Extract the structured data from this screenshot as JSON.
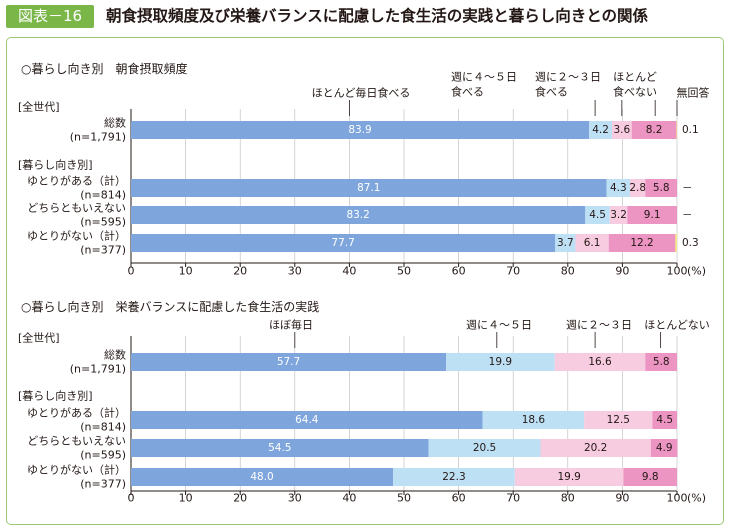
{
  "figure": {
    "number_label": "図表－16",
    "title": "朝食摂取頻度及び栄養バランスに配慮した食生活の実践と暮らし向きとの関係"
  },
  "colors": {
    "badge": "#7ab648",
    "panel_border": "#9cc878",
    "blue": "#7ea6dc",
    "light_blue": "#bee0f4",
    "light_pink": "#f7cbe0",
    "pink": "#ec95c3",
    "yellow": "#f5e880"
  },
  "chart_data": [
    {
      "type": "bar",
      "orientation": "horizontal",
      "stacked": true,
      "title": "○暮らし向き別　朝食摂取頻度",
      "xlim": [
        0,
        100
      ],
      "x_ticks": [
        "0",
        "10",
        "20",
        "30",
        "40",
        "50",
        "60",
        "70",
        "80",
        "90",
        "100"
      ],
      "x_unit": "(%)",
      "grid": true,
      "series": [
        {
          "name": "ほとんど毎日食べる",
          "color": "#7ea6dc"
        },
        {
          "name": "週に４～５日\n食べる",
          "color": "#bee0f4"
        },
        {
          "name": "週に２～３日\n食べる",
          "color": "#f7cbe0"
        },
        {
          "name": "ほとんど\n食べない",
          "color": "#ec95c3"
        },
        {
          "name": "無回答",
          "color": "#f5e880"
        }
      ],
      "groups": [
        {
          "label": "[全世代]",
          "rows": [
            {
              "label": "総数",
              "n": "(n=1,791)",
              "values": [
                83.9,
                4.2,
                3.6,
                8.2,
                0.1
              ],
              "labels": [
                "83.9",
                "4.2",
                "3.6",
                "8.2",
                "0.1"
              ]
            }
          ]
        },
        {
          "label": "[暮らし向き別]",
          "rows": [
            {
              "label": "ゆとりがある（計）",
              "n": "(n=814)",
              "values": [
                87.1,
                4.3,
                2.8,
                5.8,
                0
              ],
              "labels": [
                "87.1",
                "4.3",
                "2.8",
                "5.8",
                "－"
              ]
            },
            {
              "label": "どちらともいえない",
              "n": "(n=595)",
              "values": [
                83.2,
                4.5,
                3.2,
                9.1,
                0
              ],
              "labels": [
                "83.2",
                "4.5",
                "3.2",
                "9.1",
                "－"
              ]
            },
            {
              "label": "ゆとりがない（計）",
              "n": "(n=377)",
              "values": [
                77.7,
                3.7,
                6.1,
                12.2,
                0.3
              ],
              "labels": [
                "77.7",
                "3.7",
                "6.1",
                "12.2",
                "0.3"
              ]
            }
          ]
        }
      ]
    },
    {
      "type": "bar",
      "orientation": "horizontal",
      "stacked": true,
      "title": "○暮らし向き別　栄養バランスに配慮した食生活の実践",
      "xlim": [
        0,
        100
      ],
      "x_ticks": [
        "0",
        "10",
        "20",
        "30",
        "40",
        "50",
        "60",
        "70",
        "80",
        "90",
        "100"
      ],
      "x_unit": "(%)",
      "grid": true,
      "series": [
        {
          "name": "ほぼ毎日",
          "color": "#7ea6dc"
        },
        {
          "name": "週に４～５日",
          "color": "#bee0f4"
        },
        {
          "name": "週に２～３日",
          "color": "#f7cbe0"
        },
        {
          "name": "ほとんどない",
          "color": "#ec95c3"
        }
      ],
      "groups": [
        {
          "label": "[全世代]",
          "rows": [
            {
              "label": "総数",
              "n": "(n=1,791)",
              "values": [
                57.7,
                19.9,
                16.6,
                5.8
              ],
              "labels": [
                "57.7",
                "19.9",
                "16.6",
                "5.8"
              ]
            }
          ]
        },
        {
          "label": "[暮らし向き別]",
          "rows": [
            {
              "label": "ゆとりがある（計）",
              "n": "(n=814)",
              "values": [
                64.4,
                18.6,
                12.5,
                4.5
              ],
              "labels": [
                "64.4",
                "18.6",
                "12.5",
                "4.5"
              ]
            },
            {
              "label": "どちらともいえない",
              "n": "(n=595)",
              "values": [
                54.5,
                20.5,
                20.2,
                4.9
              ],
              "labels": [
                "54.5",
                "20.5",
                "20.2",
                "4.9"
              ]
            },
            {
              "label": "ゆとりがない（計）",
              "n": "(n=377)",
              "values": [
                48.0,
                22.3,
                19.9,
                9.8
              ],
              "labels": [
                "48.0",
                "22.3",
                "19.9",
                "9.8"
              ]
            }
          ]
        }
      ]
    }
  ]
}
